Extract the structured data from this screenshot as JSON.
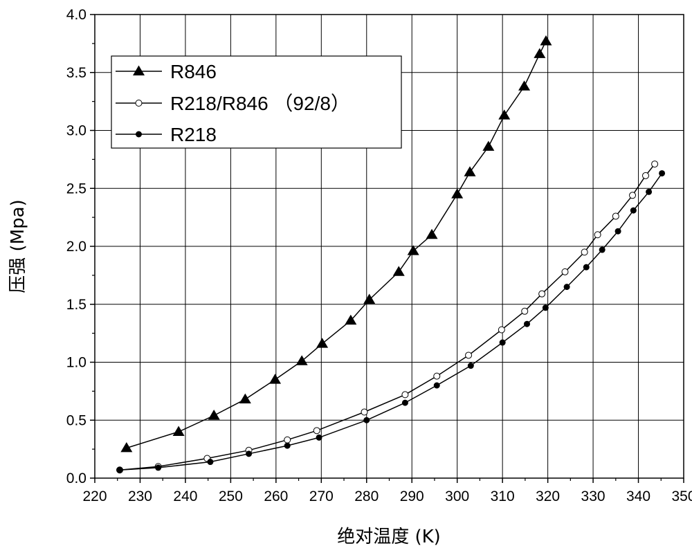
{
  "chart_data": {
    "type": "line",
    "xlabel": "绝对温度 (K)",
    "ylabel": "压强 (Mpa)",
    "xlim": [
      220,
      350
    ],
    "ylim": [
      0.0,
      4.0
    ],
    "xticks": [
      "220",
      "230",
      "240",
      "250",
      "260",
      "270",
      "280",
      "290",
      "300",
      "310",
      "320",
      "330",
      "340",
      "350"
    ],
    "yticks": [
      "0.0",
      "0.5",
      "1.0",
      "1.5",
      "2.0",
      "2.5",
      "3.0",
      "3.5",
      "4.0"
    ],
    "grid": true,
    "legend_position": "top-left",
    "series": [
      {
        "name": "R846",
        "marker": "triangle",
        "x": [
          227,
          238.5,
          246.3,
          253.2,
          259.8,
          265.7,
          270.2,
          276.5,
          280.6,
          287.1,
          290.3,
          294.4,
          300,
          302.8,
          306.9,
          310.4,
          314.8,
          318.2,
          319.6
        ],
        "y": [
          0.26,
          0.4,
          0.54,
          0.68,
          0.85,
          1.01,
          1.16,
          1.36,
          1.54,
          1.78,
          1.96,
          2.1,
          2.45,
          2.64,
          2.86,
          3.13,
          3.38,
          3.66,
          3.77
        ]
      },
      {
        "name": "R218/R846 （92/8）",
        "marker": "open-circle",
        "x": [
          225.5,
          234,
          244.8,
          254,
          262.5,
          269,
          279.5,
          288.5,
          295.5,
          302.5,
          309.8,
          314.9,
          318.7,
          323.8,
          328.1,
          331,
          335,
          338.7,
          341.6,
          343.6
        ],
        "y": [
          0.07,
          0.1,
          0.17,
          0.24,
          0.33,
          0.41,
          0.57,
          0.72,
          0.88,
          1.06,
          1.28,
          1.44,
          1.59,
          1.78,
          1.95,
          2.1,
          2.26,
          2.44,
          2.61,
          2.71
        ]
      },
      {
        "name": "R218",
        "marker": "filled-circle",
        "x": [
          225.5,
          234,
          245.5,
          254,
          262.5,
          269.5,
          280,
          288.5,
          295.5,
          303,
          310,
          315.4,
          319.5,
          324.2,
          328.5,
          332,
          335.5,
          338.9,
          342.3,
          345.2
        ],
        "y": [
          0.07,
          0.09,
          0.14,
          0.21,
          0.28,
          0.35,
          0.5,
          0.65,
          0.8,
          0.97,
          1.17,
          1.33,
          1.47,
          1.65,
          1.82,
          1.97,
          2.13,
          2.31,
          2.47,
          2.63
        ]
      }
    ]
  }
}
